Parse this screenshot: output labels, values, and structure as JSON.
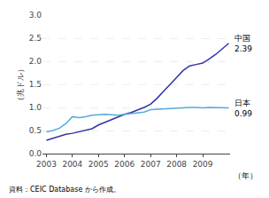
{
  "chart_data": {
    "type": "line",
    "ylabel": "（兆ドル）",
    "xlabel": "（年）",
    "source": "資料：CEIC Database から作成。",
    "x": [
      2003.0,
      2003.25,
      2003.5,
      2003.75,
      2004.0,
      2004.25,
      2004.5,
      2004.75,
      2005.0,
      2005.25,
      2005.5,
      2005.75,
      2006.0,
      2006.25,
      2006.5,
      2006.75,
      2007.0,
      2007.25,
      2007.5,
      2007.75,
      2008.0,
      2008.25,
      2008.5,
      2008.75,
      2009.0,
      2009.25,
      2009.5,
      2009.75,
      2010.0
    ],
    "series": [
      {
        "label": "中国\n2.39",
        "color": "#3333aa",
        "values": [
          0.29,
          0.33,
          0.38,
          0.42,
          0.44,
          0.47,
          0.5,
          0.54,
          0.62,
          0.68,
          0.74,
          0.8,
          0.85,
          0.89,
          0.94,
          1.0,
          1.07,
          1.2,
          1.35,
          1.49,
          1.65,
          1.8,
          1.9,
          1.93,
          1.96,
          2.05,
          2.15,
          2.27,
          2.39
        ]
      },
      {
        "label": "日本\n0.99",
        "color": "#55aadd",
        "values": [
          0.47,
          0.5,
          0.55,
          0.65,
          0.8,
          0.78,
          0.8,
          0.83,
          0.84,
          0.85,
          0.84,
          0.83,
          0.85,
          0.87,
          0.88,
          0.9,
          0.95,
          0.96,
          0.97,
          0.98,
          0.99,
          1.0,
          1.0,
          1.0,
          0.99,
          1.0,
          1.0,
          1.0,
          0.99
        ]
      }
    ],
    "xlim": [
      2002.85,
      2010.05
    ],
    "xticks": [
      2003,
      2004,
      2005,
      2006,
      2007,
      2008,
      2009
    ],
    "ylim": [
      0.0,
      3.0
    ],
    "yticks": [
      {
        "value": 0.0,
        "label": "0.0"
      },
      0.5,
      {
        "value": 1.0,
        "label": "1.0"
      },
      1.5,
      {
        "value": 2.0,
        "label": "2.0"
      },
      2.5,
      {
        "value": 3.0,
        "label": "3.0"
      }
    ],
    "grid": "y"
  }
}
